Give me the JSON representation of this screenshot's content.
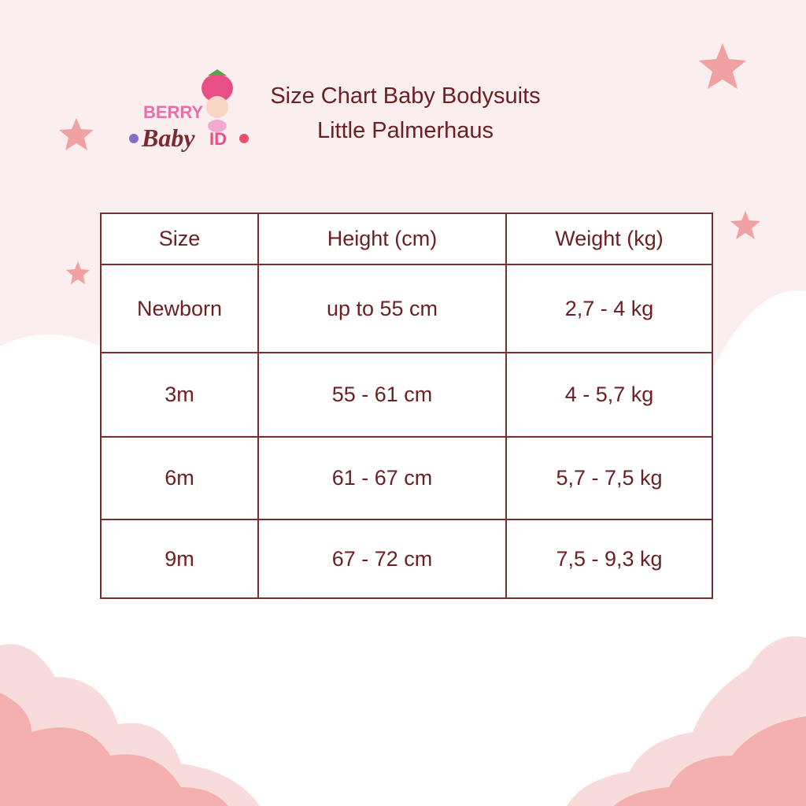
{
  "logo": {
    "text_top": "BERRY",
    "text_bottom": "Baby ID"
  },
  "title": {
    "line1": "Size Chart Baby Bodysuits",
    "line2": "Little Palmerhaus"
  },
  "table": {
    "headers": [
      "Size",
      "Height (cm)",
      "Weight (kg)"
    ],
    "rows": [
      [
        "Newborn",
        "up to 55 cm",
        "2,7 - 4 kg"
      ],
      [
        "3m",
        "55 - 61 cm",
        "4 - 5,7 kg"
      ],
      [
        "6m",
        "61 - 67 cm",
        "5,7 - 7,5 kg"
      ],
      [
        "9m",
        "67 - 72 cm",
        "7,5 - 9,3 kg"
      ]
    ]
  },
  "colors": {
    "text": "#6b1f22",
    "border": "#7a2d2d",
    "star": "#f0a2a2",
    "cloud": "#f3b0ae"
  }
}
